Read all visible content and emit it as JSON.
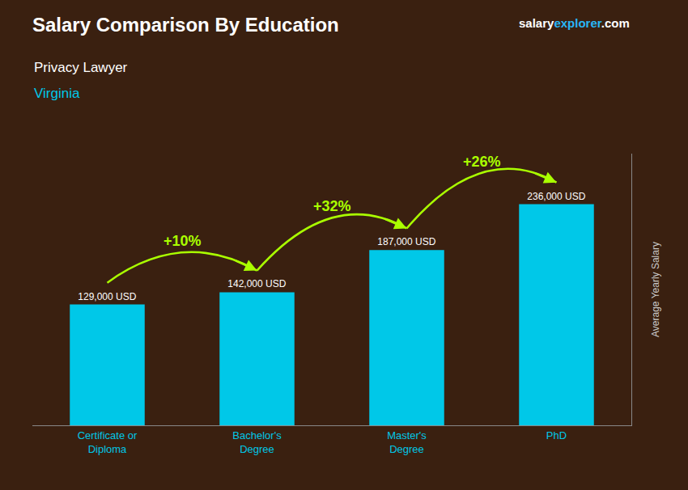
{
  "chart_data": {
    "type": "bar",
    "title": "Salary Comparison By Education",
    "subtitle": [
      {
        "text": "Privacy Lawyer",
        "color": "#ffffff"
      },
      {
        "text": "Virginia",
        "color": "#00c8e8"
      }
    ],
    "brand": [
      {
        "text": "salary",
        "color": "#ffffff"
      },
      {
        "text": "explorer",
        "color": "#29b6f6"
      },
      {
        "text": ".com",
        "color": "#ffffff"
      }
    ],
    "ylabel": "Average Yearly Salary",
    "categories": [
      "Certificate or\nDiploma",
      "Bachelor's\nDegree",
      "Master's\nDegree",
      "PhD"
    ],
    "values": [
      129000,
      142000,
      187000,
      236000
    ],
    "value_labels": [
      "129,000 USD",
      "142,000 USD",
      "187,000 USD",
      "236,000 USD"
    ],
    "data_labels": true,
    "color": "#00c8e8",
    "bg_color": "#3a2010",
    "ylim": [
      0,
      290000
    ],
    "tick_labels": "x",
    "grid": false,
    "annotations": [
      {
        "text": "+10%",
        "from": 0,
        "to": 1,
        "color": "#aaff00"
      },
      {
        "text": "+32%",
        "from": 1,
        "to": 2,
        "color": "#aaff00"
      },
      {
        "text": "+26%",
        "from": 2,
        "to": 3,
        "color": "#aaff00"
      }
    ]
  }
}
